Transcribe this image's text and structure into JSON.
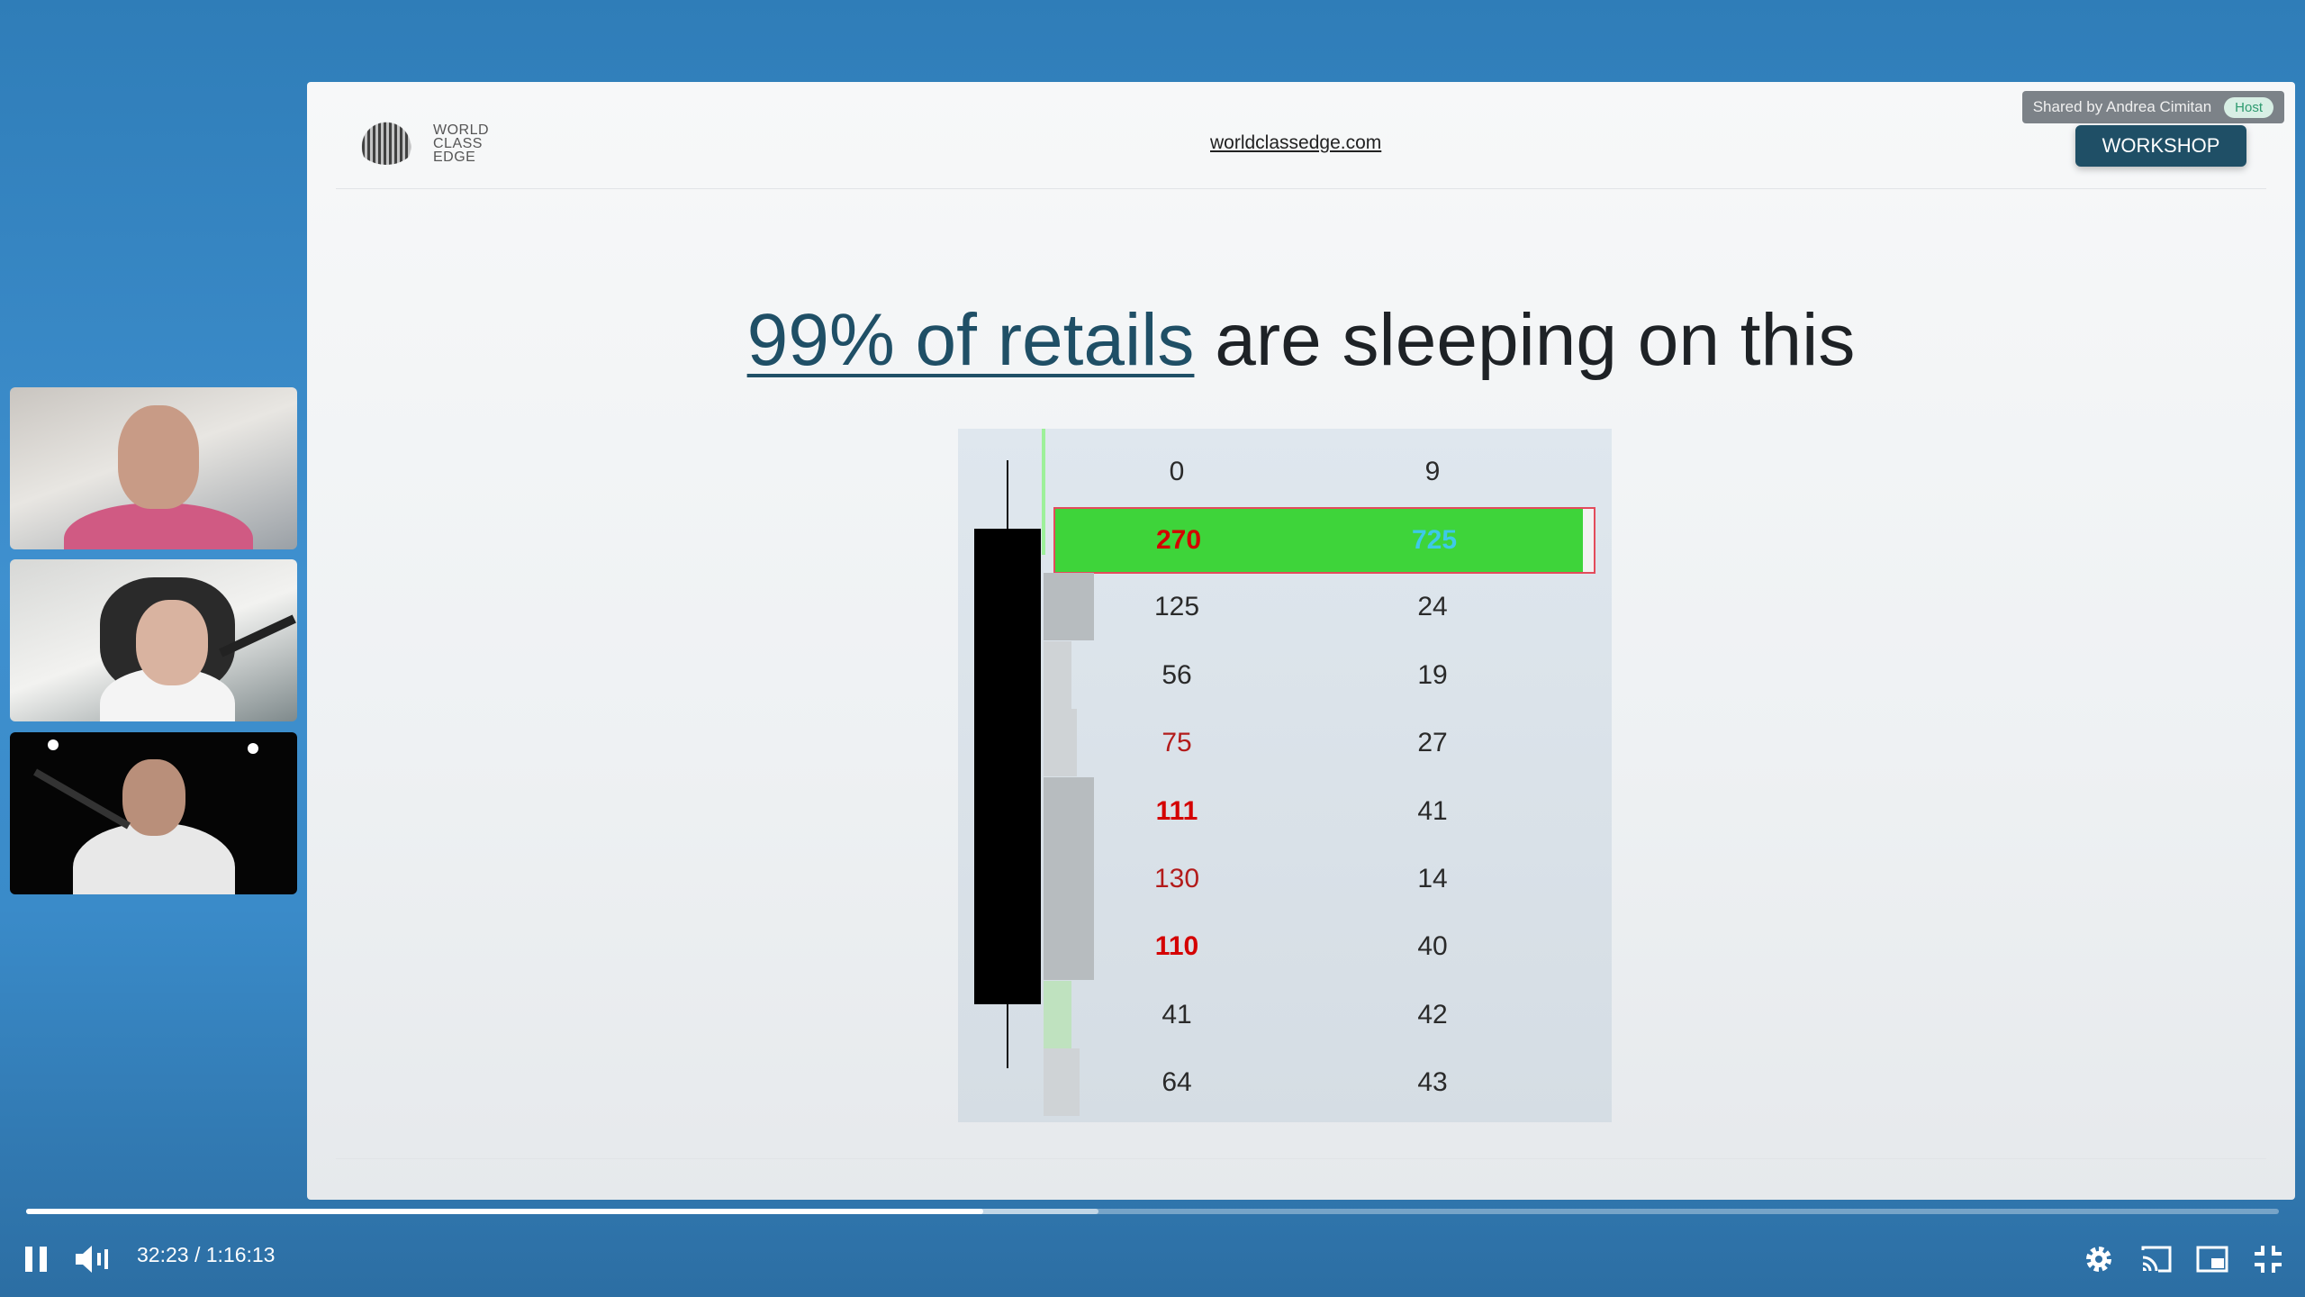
{
  "participants": [
    {
      "name": "participant-1"
    },
    {
      "name": "participant-2"
    },
    {
      "name": "participant-3"
    }
  ],
  "slide": {
    "logo_text": [
      "WORLD",
      "CLASS",
      "EDGE"
    ],
    "site_link": "worldclassedge.com",
    "shared_by": "Shared by Andrea Cimitan",
    "host_badge": "Host",
    "workshop_button": "WORKSHOP",
    "headline_highlight": "99% of retails",
    "headline_rest": " are sleeping on this"
  },
  "footprint": {
    "header": [
      "0",
      "9"
    ],
    "rows": [
      {
        "bid": "270",
        "ask": "725",
        "highlight": true,
        "volume_fraction": 0.97
      },
      {
        "bid": "125",
        "ask": "24",
        "style": "normal",
        "volume_fraction": 0.09
      },
      {
        "bid": "56",
        "ask": "19",
        "style": "normal",
        "volume_fraction": 0.05
      },
      {
        "bid": "75",
        "ask": "27",
        "style": "red",
        "volume_fraction": 0.06
      },
      {
        "bid": "111",
        "ask": "41",
        "style": "redbold",
        "volume_fraction": 0.09
      },
      {
        "bid": "130",
        "ask": "14",
        "style": "red",
        "volume_fraction": 0.09
      },
      {
        "bid": "110",
        "ask": "40",
        "style": "redbold",
        "volume_fraction": 0.09
      },
      {
        "bid": "41",
        "ask": "42",
        "style": "normal",
        "volume_fraction": 0.05,
        "green": true
      },
      {
        "bid": "64",
        "ask": "43",
        "style": "normal",
        "volume_fraction": 0.065
      }
    ]
  },
  "player": {
    "current_time": "32:23",
    "separator": "/",
    "duration": "1:16:13",
    "played_fraction": 0.425,
    "buffered_fraction": 0.476
  },
  "icons": {
    "pause": "pause-icon",
    "volume": "volume-icon",
    "settings": "gear-icon",
    "cast": "cast-icon",
    "miniplayer": "miniplayer-icon",
    "fullscreen": "exit-fullscreen-icon"
  }
}
